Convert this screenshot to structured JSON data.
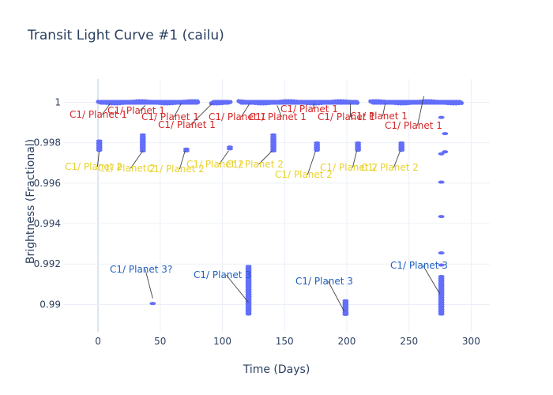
{
  "chart_data": {
    "type": "scatter",
    "title": "Transit Light Curve #1 (cailu)",
    "xlabel": "Time (Days)",
    "ylabel": "Brightness (Fractional)",
    "xlim": [
      -28,
      315
    ],
    "ylim": [
      0.98865,
      1.00115
    ],
    "xticks": [
      0,
      50,
      100,
      150,
      200,
      250,
      300
    ],
    "xtick_labels": [
      "0",
      "50",
      "100",
      "150",
      "200",
      "250",
      "300"
    ],
    "yticks": [
      0.99,
      0.992,
      0.994,
      0.996,
      0.998,
      1
    ],
    "ytick_labels": [
      "0.99",
      "0.992",
      "0.994",
      "0.996",
      "0.998",
      "1"
    ],
    "grid": true,
    "legend": "none",
    "marker_color": "#636efa",
    "baseline": {
      "y": 1.0,
      "segments": [
        [
          0,
          82
        ],
        [
          91,
          107
        ],
        [
          113,
          210
        ],
        [
          219,
          293
        ]
      ]
    },
    "dip_columns": [
      {
        "x": 1,
        "y_min": 0.99755,
        "y_max": 0.9981
      },
      {
        "x": 36,
        "y_min": 0.99755,
        "y_max": 0.9984
      },
      {
        "x": 71,
        "y_min": 0.99755,
        "y_max": 0.9977
      },
      {
        "x": 106,
        "y_min": 0.99765,
        "y_max": 0.9978
      },
      {
        "x": 141,
        "y_min": 0.99755,
        "y_max": 0.9984
      },
      {
        "x": 176,
        "y_min": 0.99755,
        "y_max": 0.998
      },
      {
        "x": 209,
        "y_min": 0.99755,
        "y_max": 0.998
      },
      {
        "x": 244,
        "y_min": 0.99755,
        "y_max": 0.998
      },
      {
        "x": 121,
        "y_min": 0.98945,
        "y_max": 0.9919
      },
      {
        "x": 199,
        "y_min": 0.98945,
        "y_max": 0.9902
      },
      {
        "x": 276,
        "y_min": 0.98945,
        "y_max": 0.9914
      }
    ],
    "points": [
      {
        "x": 44,
        "y": 0.99005
      },
      {
        "x": 276,
        "y": 0.99925
      },
      {
        "x": 276,
        "y": 0.99745
      },
      {
        "x": 276,
        "y": 0.99605
      },
      {
        "x": 276,
        "y": 0.99435
      },
      {
        "x": 276,
        "y": 0.99255
      },
      {
        "x": 276,
        "y": 0.99195
      },
      {
        "x": 279,
        "y": 0.99845
      },
      {
        "x": 279,
        "y": 0.99755
      }
    ],
    "annotations": [
      {
        "text": "C1/ Planet 1",
        "x": 10,
        "y": 0.99995,
        "color": "#d62728",
        "tx": 88,
        "ty": 149
      },
      {
        "text": "C1/ Planet 1",
        "x": 38,
        "y": 0.99985,
        "color": "#d62728",
        "tx": 136,
        "ty": 144
      },
      {
        "text": "C1/ Planet 1",
        "x": 67,
        "y": 0.99995,
        "color": "#d62728",
        "tx": 179,
        "ty": 152
      },
      {
        "text": "C1/ Planet 1",
        "x": 92,
        "y": 0.99995,
        "color": "#d62728",
        "tx": 200,
        "ty": 162
      },
      {
        "text": "C1/ Planet 1",
        "x": 122,
        "y": 0.99995,
        "color": "#d62728",
        "tx": 264,
        "ty": 152
      },
      {
        "text": "C1/ Planet 1",
        "x": 144,
        "y": 0.99985,
        "color": "#d62728",
        "tx": 315,
        "ty": 152
      },
      {
        "text": "C1/ Planet 1",
        "x": 174,
        "y": 0.99995,
        "color": "#d62728",
        "tx": 355,
        "ty": 142
      },
      {
        "text": "C1/ Planet 1",
        "x": 203,
        "y": 0.99995,
        "color": "#d62728",
        "tx": 402,
        "ty": 152
      },
      {
        "text": "C1/ Planet 1",
        "x": 231,
        "y": 0.99995,
        "color": "#d62728",
        "tx": 443,
        "ty": 151
      },
      {
        "text": "C1/ Planet 1",
        "x": 262,
        "y": 1.0003,
        "color": "#d62728",
        "tx": 487,
        "ty": 163
      },
      {
        "text": "C1/ Planet 2",
        "x": 1,
        "y": 0.9976,
        "color": "#e8d22c",
        "tx": 82,
        "ty": 215
      },
      {
        "text": "C1/ Planet 2",
        "x": 36,
        "y": 0.9976,
        "color": "#e8d22c",
        "tx": 124,
        "ty": 217
      },
      {
        "text": "C1/ Planet 2",
        "x": 70,
        "y": 0.9976,
        "color": "#e8d22c",
        "tx": 186,
        "ty": 218
      },
      {
        "text": "C1/ Planet 2",
        "x": 105,
        "y": 0.9976,
        "color": "#e8d22c",
        "tx": 236,
        "ty": 212
      },
      {
        "text": "C1/ Planet 2",
        "x": 140,
        "y": 0.9976,
        "color": "#e8d22c",
        "tx": 286,
        "ty": 212
      },
      {
        "text": "C1/ Planet 2",
        "x": 175,
        "y": 0.9976,
        "color": "#e8d22c",
        "tx": 348,
        "ty": 225
      },
      {
        "text": "C1/ Planet 2",
        "x": 208,
        "y": 0.9976,
        "color": "#e8d22c",
        "tx": 405,
        "ty": 216
      },
      {
        "text": "C1/ Planet 2",
        "x": 243,
        "y": 0.9976,
        "color": "#e8d22c",
        "tx": 457,
        "ty": 216
      },
      {
        "text": "C1/ Planet 3?",
        "x": 44,
        "y": 0.9903,
        "color": "#1f5fbf",
        "tx": 139,
        "ty": 345
      },
      {
        "text": "C1/ Planet 3",
        "x": 121,
        "y": 0.9901,
        "color": "#1f5fbf",
        "tx": 245,
        "ty": 352
      },
      {
        "text": "C1/ Planet 3",
        "x": 198,
        "y": 0.98965,
        "color": "#1f5fbf",
        "tx": 374,
        "ty": 360
      },
      {
        "text": "C1/ Planet 3",
        "x": 275,
        "y": 0.9905,
        "color": "#1f5fbf",
        "tx": 494,
        "ty": 340
      }
    ]
  }
}
